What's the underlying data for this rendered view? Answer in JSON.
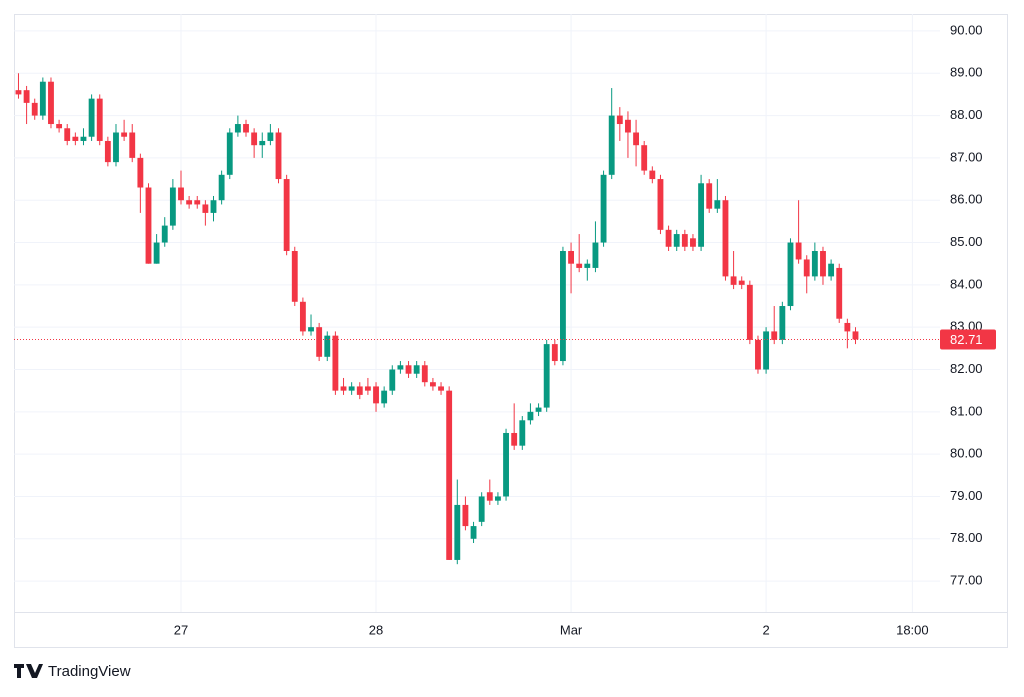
{
  "chart_data": {
    "type": "candlestick",
    "x": [
      4,
      5,
      6,
      7,
      8,
      9,
      10,
      11,
      12,
      13,
      14,
      15,
      16,
      17,
      18,
      19,
      20,
      21,
      22,
      23,
      24,
      25,
      26,
      27,
      28,
      29,
      30,
      31,
      32,
      33,
      34,
      35,
      36,
      37,
      38,
      39,
      40,
      41,
      42,
      43,
      44,
      45,
      46,
      47,
      48,
      49,
      50,
      51,
      52,
      53,
      54,
      55,
      56,
      57,
      58,
      59,
      60,
      61,
      62,
      63,
      64,
      65,
      66,
      67,
      68,
      69,
      70,
      71,
      72,
      73,
      74,
      75,
      76,
      77,
      78,
      79,
      80,
      81,
      82,
      83,
      84,
      85,
      86,
      87,
      88,
      89,
      90,
      91,
      92,
      93,
      94,
      95,
      96,
      97,
      98,
      99,
      100,
      101,
      102,
      103,
      104,
      105,
      106,
      107
    ],
    "open": [
      88.6,
      88.6,
      88.3,
      88.0,
      88.8,
      87.8,
      87.7,
      87.5,
      87.4,
      87.5,
      88.4,
      87.4,
      86.9,
      87.6,
      87.6,
      87.0,
      86.3,
      84.5,
      85.0,
      85.4,
      86.3,
      86.0,
      86.0,
      85.9,
      85.7,
      86.0,
      86.6,
      87.6,
      87.8,
      87.6,
      87.3,
      87.4,
      87.6,
      86.5,
      84.8,
      83.6,
      82.9,
      83.0,
      82.3,
      82.8,
      81.6,
      81.5,
      81.6,
      81.6,
      81.6,
      81.2,
      81.5,
      82.0,
      82.1,
      81.9,
      82.1,
      81.7,
      81.6,
      81.5,
      77.5,
      78.8,
      78.0,
      78.4,
      79.1,
      78.9,
      79.0,
      80.5,
      80.2,
      80.8,
      81.0,
      81.1,
      82.6,
      82.2,
      84.8,
      84.5,
      84.4,
      84.4,
      85.0,
      86.6,
      88.0,
      87.9,
      87.6,
      87.3,
      86.7,
      86.5,
      85.3,
      84.9,
      85.2,
      85.1,
      84.9,
      86.4,
      85.8,
      86.0,
      84.2,
      84.1,
      84.0,
      82.7,
      82.0,
      82.9,
      82.7,
      83.5,
      85.0,
      84.6,
      84.2,
      84.8,
      84.2,
      84.4,
      83.1,
      82.9
    ],
    "high": [
      89.0,
      88.7,
      88.4,
      88.9,
      88.9,
      87.9,
      87.8,
      87.6,
      87.7,
      88.5,
      88.5,
      87.5,
      87.8,
      87.9,
      87.8,
      87.1,
      86.4,
      85.2,
      85.6,
      86.5,
      86.7,
      86.1,
      86.1,
      86.0,
      86.1,
      86.7,
      87.7,
      88.0,
      87.9,
      87.7,
      87.6,
      87.8,
      87.7,
      86.6,
      84.9,
      83.7,
      83.3,
      83.1,
      82.9,
      82.9,
      81.8,
      81.7,
      81.7,
      81.8,
      81.7,
      81.6,
      82.1,
      82.2,
      82.2,
      82.2,
      82.2,
      81.8,
      81.7,
      81.6,
      79.4,
      79.0,
      78.4,
      79.1,
      79.4,
      79.1,
      80.6,
      81.2,
      80.9,
      81.2,
      81.2,
      82.7,
      82.7,
      84.9,
      85.0,
      85.2,
      84.6,
      85.5,
      86.7,
      88.65,
      88.2,
      88.1,
      87.9,
      87.4,
      86.8,
      86.6,
      85.4,
      85.3,
      85.3,
      85.2,
      86.6,
      86.5,
      86.5,
      86.1,
      84.8,
      84.2,
      84.1,
      82.8,
      83.0,
      83.5,
      83.6,
      85.1,
      86.0,
      84.7,
      85.0,
      84.9,
      84.6,
      84.5,
      83.2,
      83.0
    ],
    "low": [
      88.4,
      87.8,
      87.9,
      87.9,
      87.7,
      87.6,
      87.3,
      87.3,
      87.3,
      87.4,
      87.3,
      86.8,
      86.8,
      87.4,
      86.9,
      85.7,
      84.5,
      84.5,
      84.9,
      85.3,
      85.9,
      85.8,
      85.8,
      85.4,
      85.5,
      85.9,
      86.5,
      87.5,
      87.5,
      87.0,
      87.0,
      87.3,
      86.4,
      84.7,
      83.5,
      82.8,
      82.8,
      82.2,
      82.2,
      81.4,
      81.4,
      81.4,
      81.3,
      81.4,
      81.0,
      81.1,
      81.4,
      81.9,
      81.8,
      81.8,
      81.6,
      81.5,
      81.4,
      77.5,
      77.4,
      78.2,
      77.9,
      78.3,
      78.8,
      78.8,
      78.9,
      80.1,
      80.1,
      80.7,
      80.9,
      81.0,
      82.1,
      82.1,
      83.8,
      84.3,
      84.1,
      84.3,
      84.9,
      86.5,
      87.4,
      87.0,
      86.8,
      86.6,
      86.4,
      85.2,
      84.8,
      84.8,
      84.8,
      84.8,
      84.8,
      85.7,
      85.7,
      84.1,
      83.9,
      83.9,
      82.6,
      81.9,
      81.9,
      82.6,
      82.6,
      83.4,
      84.5,
      83.8,
      84.1,
      84.0,
      84.1,
      83.1,
      82.5,
      82.6
    ],
    "close": [
      88.5,
      88.3,
      88.0,
      88.8,
      87.8,
      87.7,
      87.4,
      87.4,
      87.5,
      88.4,
      87.4,
      86.9,
      87.6,
      87.5,
      87.0,
      86.3,
      84.5,
      85.0,
      85.4,
      86.3,
      86.0,
      85.9,
      85.9,
      85.7,
      86.0,
      86.6,
      87.6,
      87.8,
      87.6,
      87.3,
      87.4,
      87.6,
      86.5,
      84.8,
      83.6,
      82.9,
      83.0,
      82.3,
      82.8,
      81.5,
      81.5,
      81.6,
      81.4,
      81.5,
      81.2,
      81.5,
      82.0,
      82.1,
      81.9,
      82.1,
      81.7,
      81.6,
      81.5,
      77.5,
      78.8,
      78.3,
      78.3,
      79.0,
      78.9,
      79.0,
      80.5,
      80.2,
      80.8,
      81.0,
      81.1,
      82.6,
      82.2,
      84.8,
      84.5,
      84.4,
      84.5,
      85.0,
      86.6,
      88.0,
      87.8,
      87.6,
      87.3,
      86.7,
      86.5,
      85.3,
      84.9,
      85.2,
      84.9,
      84.9,
      86.4,
      85.8,
      86.0,
      84.2,
      84.0,
      84.0,
      82.7,
      82.0,
      82.9,
      82.7,
      83.5,
      85.0,
      84.6,
      84.2,
      84.8,
      84.2,
      84.5,
      83.2,
      82.9,
      82.71
    ],
    "up_color": "#089981",
    "down_color": "#f23645",
    "last_price": 82.71,
    "xlim": [
      3.45,
      117.4
    ],
    "xticks": [
      {
        "value": 24,
        "label": "27"
      },
      {
        "value": 48,
        "label": "28"
      },
      {
        "value": 72,
        "label": "Mar"
      },
      {
        "value": 96,
        "label": "2"
      },
      {
        "value": 114,
        "label": "18:00"
      }
    ],
    "ylim": [
      76.27,
      90.4
    ],
    "yticks": [
      {
        "value": 77,
        "label": "77.00"
      },
      {
        "value": 78,
        "label": "78.00"
      },
      {
        "value": 79,
        "label": "79.00"
      },
      {
        "value": 80,
        "label": "80.00"
      },
      {
        "value": 81,
        "label": "81.00"
      },
      {
        "value": 82,
        "label": "82.00"
      },
      {
        "value": 83,
        "label": "83.00"
      },
      {
        "value": 84,
        "label": "84.00"
      },
      {
        "value": 85,
        "label": "85.00"
      },
      {
        "value": 86,
        "label": "86.00"
      },
      {
        "value": 87,
        "label": "87.00"
      },
      {
        "value": 88,
        "label": "88.00"
      },
      {
        "value": 89,
        "label": "89.00"
      },
      {
        "value": 90,
        "label": "90.00"
      }
    ],
    "grid": true
  },
  "footer": {
    "brand": "TradingView"
  }
}
